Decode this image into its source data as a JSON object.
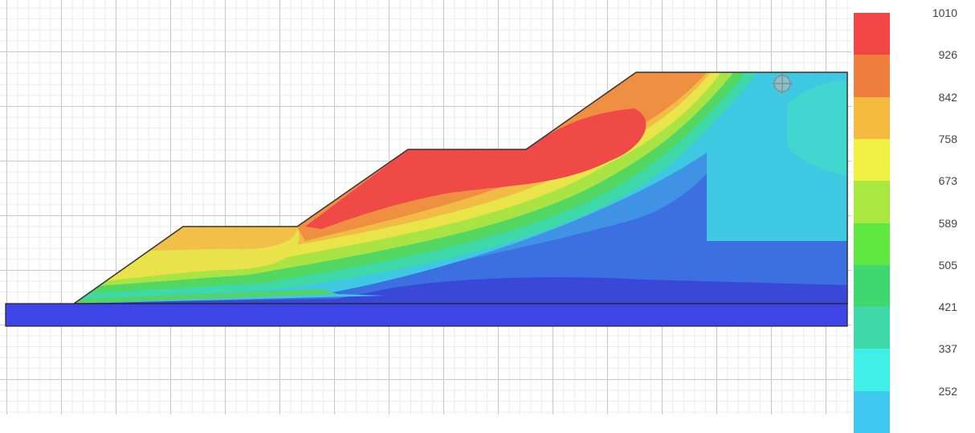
{
  "legend": {
    "labels": [
      "1010",
      "926",
      "842",
      "758",
      "673",
      "589",
      "505",
      "421",
      "337",
      "252"
    ],
    "band_colors": [
      "#f24545",
      "#f07e3e",
      "#f5bb40",
      "#f0f045",
      "#a8e840",
      "#5fe840",
      "#3fd870",
      "#3fd8a8",
      "#40f0e8",
      "#40c8f0"
    ]
  },
  "palette": {
    "red": "#f0474a",
    "orange": "#ef8a40",
    "yellow": "#e9e04a",
    "green": "#50d060",
    "cyan": "#40d8d8",
    "blue_light": "#3c9ae0",
    "blue_mid": "#3a6ce0",
    "blue_deep": "#3440d8",
    "base_layer": "#3d45e6"
  },
  "marker": {
    "icon": "crosshair-target-icon"
  }
}
